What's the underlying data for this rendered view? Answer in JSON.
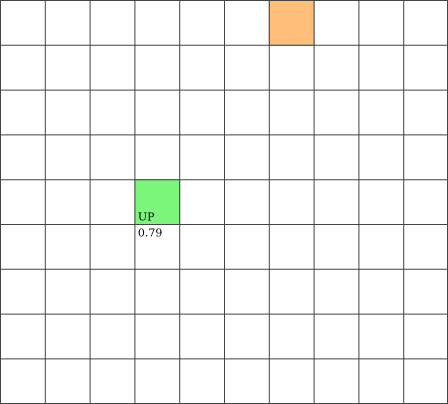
{
  "grid": {
    "cols": 10,
    "rows": 9,
    "line_color": "#444444",
    "background": "#ffffff"
  },
  "cells": [
    {
      "name": "goal-cell",
      "row": 0,
      "col": 6,
      "fill": "#ffbe7a",
      "stroke": "#888888"
    },
    {
      "name": "agent-cell",
      "row": 4,
      "col": 3,
      "fill": "#7cf77c",
      "stroke": "#888888",
      "action": "UP",
      "value": "0.79"
    }
  ]
}
